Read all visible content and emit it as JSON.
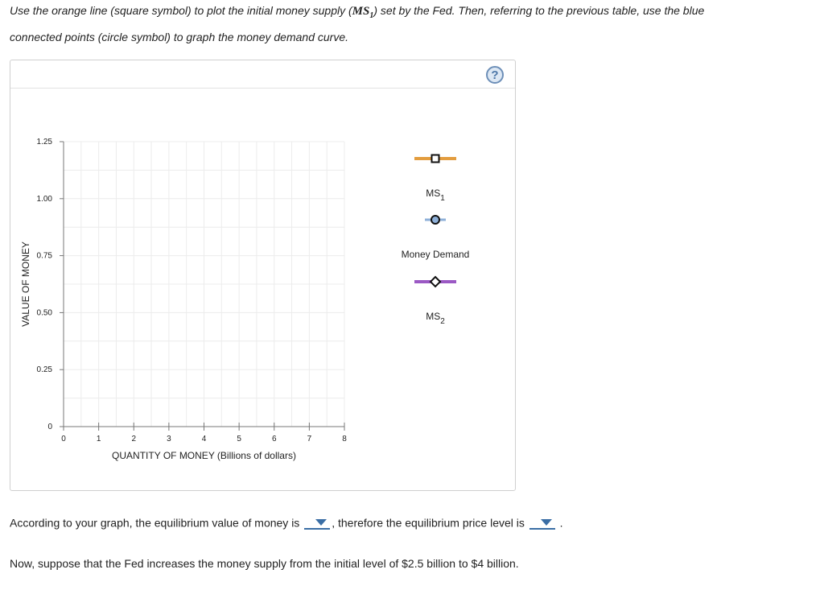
{
  "instructions": {
    "part1": "Use the orange line (square symbol) to plot the initial money supply (",
    "ms_label": "MS",
    "ms_sub": "1",
    "part2": ") set by the Fed. Then, referring to the previous table, use the blue",
    "line2": "connected points (circle symbol) to graph the money demand curve."
  },
  "graph": {
    "help_symbol": "?",
    "y_axis_label": "VALUE OF MONEY",
    "x_axis_label": "QUANTITY OF MONEY (Billions of dollars)",
    "y_ticks": [
      "0",
      "0.25",
      "0.50",
      "0.75",
      "1.00",
      "1.25"
    ],
    "x_ticks": [
      "0",
      "1",
      "2",
      "3",
      "4",
      "5",
      "6",
      "7",
      "8"
    ],
    "palette": [
      {
        "name": "MS",
        "sub": "1",
        "color": "#e39d3f",
        "marker": "square"
      },
      {
        "name": "Money Demand",
        "sub": "",
        "color": "#8eb0d8",
        "marker": "circle"
      },
      {
        "name": "MS",
        "sub": "2",
        "color": "#9b59c4",
        "marker": "diamond"
      }
    ]
  },
  "question": {
    "part1": "According to your graph, the equilibrium value of money is",
    "part2": ", therefore the equilibrium price level is",
    "end": "."
  },
  "note": "Now, suppose that the Fed increases the money supply from the initial level of $2.5 billion to $4 billion."
}
